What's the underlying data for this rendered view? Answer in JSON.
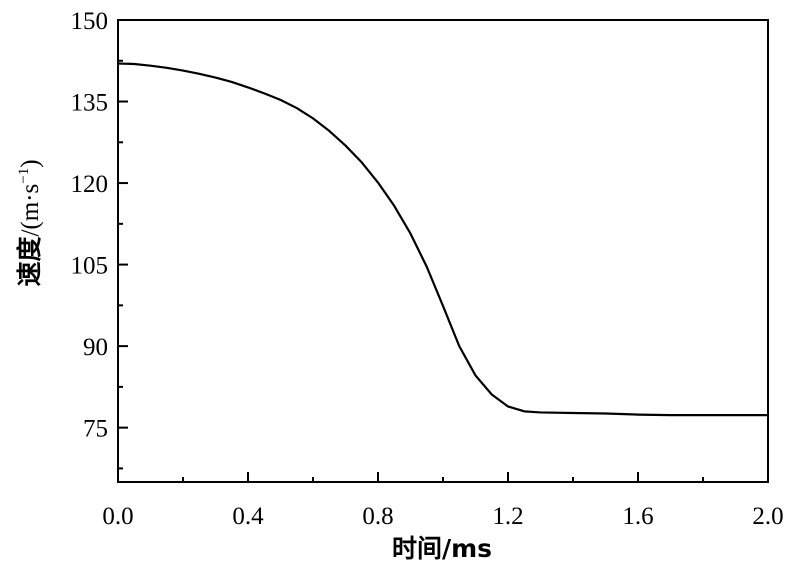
{
  "chart_data": {
    "type": "line",
    "xlabel": "时间/ms",
    "ylabel_main": "速度",
    "ylabel_unit": "/(m·s",
    "ylabel_exp": "−1",
    "ylabel_close": ")",
    "xlim": [
      0.0,
      2.0
    ],
    "ylim": [
      65,
      150
    ],
    "x_ticks": [
      0.0,
      0.4,
      0.8,
      1.2,
      1.6,
      2.0
    ],
    "x_tick_labels": [
      "0.0",
      "0.4",
      "0.8",
      "1.2",
      "1.6",
      "2.0"
    ],
    "x_minor_step": 0.2,
    "y_ticks": [
      75,
      90,
      105,
      120,
      135,
      150
    ],
    "y_tick_labels": [
      "75",
      "90",
      "105",
      "120",
      "135",
      "150"
    ],
    "y_minor_step": 7.5,
    "grid": false,
    "series": [
      {
        "color": "#000000",
        "x": [
          0.0,
          0.05,
          0.1,
          0.15,
          0.2,
          0.25,
          0.3,
          0.35,
          0.4,
          0.45,
          0.5,
          0.55,
          0.6,
          0.65,
          0.7,
          0.75,
          0.8,
          0.85,
          0.9,
          0.95,
          1.0,
          1.05,
          1.1,
          1.15,
          1.2,
          1.25,
          1.3,
          1.4,
          1.5,
          1.6,
          1.7,
          1.8,
          1.9,
          2.0
        ],
        "y": [
          142.0,
          141.9,
          141.6,
          141.2,
          140.7,
          140.1,
          139.4,
          138.6,
          137.6,
          136.5,
          135.3,
          133.8,
          131.9,
          129.6,
          126.9,
          123.8,
          120.1,
          115.8,
          110.7,
          104.6,
          97.4,
          90.0,
          84.6,
          81.1,
          78.9,
          78.0,
          77.8,
          77.7,
          77.6,
          77.4,
          77.3,
          77.3,
          77.3,
          77.3
        ]
      }
    ]
  }
}
